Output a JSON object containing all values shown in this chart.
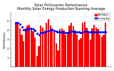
{
  "title": "Solar PV/Inverter Performance\nMonthly Solar Energy Production Running Average",
  "title_fontsize": 3.5,
  "bar_color": "#ff0000",
  "avg_color": "#0000ff",
  "bar_values": [
    4.8,
    4.9,
    4.2,
    3.5,
    2.8,
    4.2,
    4.5,
    4.6,
    4.3,
    3.9,
    3.2,
    1.2,
    2.3,
    4.5,
    4.3,
    4.0,
    4.8,
    5.2,
    4.5,
    4.2,
    3.8,
    2.6,
    1.8,
    4.1,
    4.2,
    4.0,
    3.5,
    3.8,
    4.5,
    4.8,
    4.4,
    4.0,
    3.5,
    3.0,
    3.1,
    4.8,
    4.9,
    4.3,
    3.8,
    3.0,
    4.2,
    4.6,
    4.3,
    4.1,
    3.5,
    3.3,
    3.5,
    4.8
  ],
  "avg_values": [
    4.8,
    4.85,
    4.63,
    4.35,
    4.06,
    4.07,
    4.11,
    4.19,
    4.21,
    4.14,
    3.98,
    3.68,
    3.52,
    3.71,
    3.73,
    3.78,
    3.88,
    4.0,
    4.03,
    4.03,
    4.0,
    3.92,
    3.79,
    3.79,
    3.79,
    3.79,
    3.76,
    3.76,
    3.8,
    3.86,
    3.86,
    3.85,
    3.83,
    3.79,
    3.74,
    3.83,
    3.87,
    3.86,
    3.84,
    3.79,
    3.8,
    3.84,
    3.85,
    3.85,
    3.83,
    3.8,
    3.78,
    3.84
  ],
  "ylim": [
    0,
    6.0
  ],
  "yticks": [
    1,
    2,
    3,
    4,
    5
  ],
  "ylabel": "kWh/kWp/day",
  "background_color": "#ffffff",
  "grid_color": "#cccccc",
  "legend_bar_label": "kWh/kWp/d",
  "legend_avg_label": "Running Avg"
}
